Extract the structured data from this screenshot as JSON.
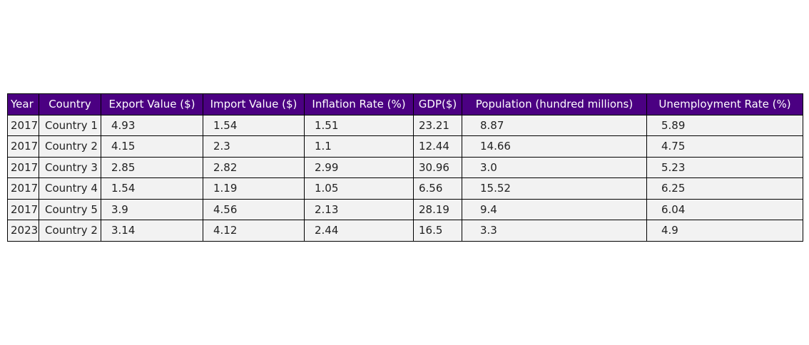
{
  "chart_data": {
    "type": "table",
    "title": "",
    "columns": [
      "Year",
      "Country",
      "Export Value ($)",
      "Import Value ($)",
      "Inflation Rate (%)",
      "GDP($)",
      "Population (hundred millions)",
      "Unemployment Rate (%)"
    ],
    "rows": [
      [
        "2017",
        "Country 1",
        "4.93",
        "1.54",
        "1.51",
        "23.21",
        "8.87",
        "5.89"
      ],
      [
        "2017",
        "Country 2",
        "4.15",
        "2.3",
        "1.1",
        "12.44",
        "14.66",
        "4.75"
      ],
      [
        "2017",
        "Country 3",
        "2.85",
        "2.82",
        "2.99",
        "30.96",
        "3.0",
        "5.23"
      ],
      [
        "2017",
        "Country 4",
        "1.54",
        "1.19",
        "1.05",
        "6.56",
        "15.52",
        "6.25"
      ],
      [
        "2017",
        "Country 5",
        "3.9",
        "4.56",
        "2.13",
        "28.19",
        "9.4",
        "6.04"
      ],
      [
        "2023",
        "Country 2",
        "3.14",
        "4.12",
        "2.44",
        "16.5",
        "3.3",
        "4.9"
      ]
    ]
  },
  "colors": {
    "header_background": "#4b0082",
    "header_text": "#ffffff",
    "cell_background": "#f2f2f2",
    "cell_text": "#222222",
    "border": "#000000"
  }
}
